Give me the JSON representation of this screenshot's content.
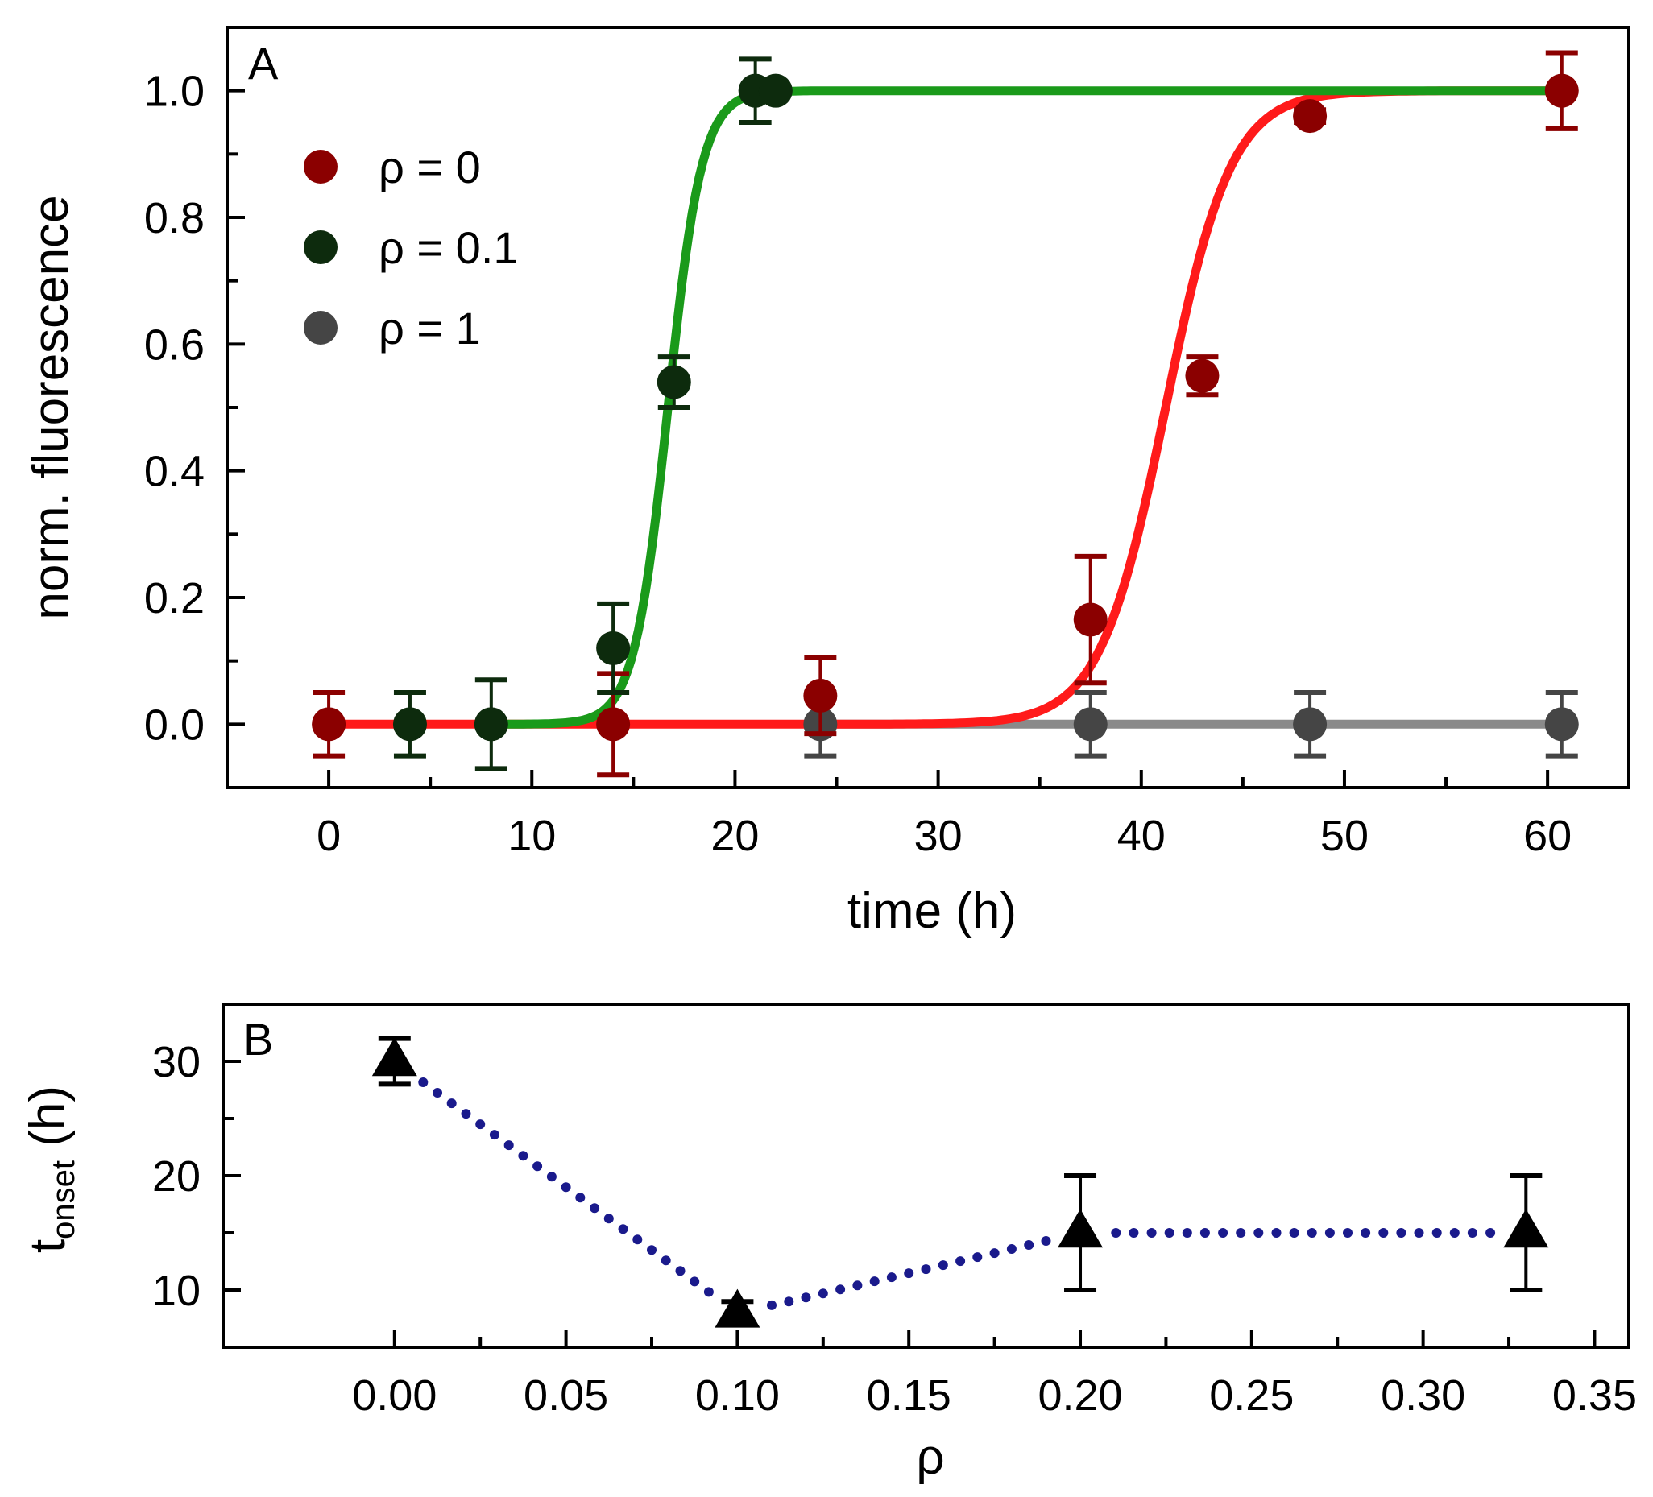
{
  "chart_data": [
    {
      "panel": "A",
      "type": "scatter",
      "xlabel": "time (h)",
      "ylabel": "norm. fluorescence",
      "xlim": [
        -5,
        64
      ],
      "ylim": [
        -0.1,
        1.1
      ],
      "xticks": [
        0,
        10,
        20,
        30,
        40,
        50,
        60
      ],
      "xtick_labels": [
        "0",
        "10",
        "20",
        "30",
        "40",
        "50",
        "60"
      ],
      "yticks": [
        0.0,
        0.2,
        0.4,
        0.6,
        0.8,
        1.0
      ],
      "ytick_labels": [
        "0.0",
        "0.2",
        "0.4",
        "0.6",
        "0.8",
        "1.0"
      ],
      "legend_position": "top-left",
      "series": [
        {
          "name": "ρ = 0",
          "marker_color": "#8b0000",
          "fit_color": "#ff1a1a",
          "fit": {
            "type": "sigmoid",
            "x0": 41.2,
            "k": 0.62,
            "x_range": [
              0,
              61
            ]
          },
          "points": [
            {
              "x": 0,
              "y": 0.0,
              "err": 0.05
            },
            {
              "x": 14,
              "y": 0.0,
              "err": 0.08
            },
            {
              "x": 24.2,
              "y": 0.045,
              "err": 0.06
            },
            {
              "x": 37.5,
              "y": 0.165,
              "err": 0.1
            },
            {
              "x": 43,
              "y": 0.55,
              "err": 0.03
            },
            {
              "x": 48.3,
              "y": 0.96,
              "err": 0.01
            },
            {
              "x": 60.7,
              "y": 1.0,
              "err": 0.06
            }
          ]
        },
        {
          "name": "ρ = 0.1",
          "marker_color": "#0d2b0d",
          "fit_color": "#1a9a1a",
          "fit": {
            "type": "sigmoid",
            "x0": 16.7,
            "k": 1.2,
            "x_range": [
              8,
              61
            ]
          },
          "points": [
            {
              "x": 4,
              "y": 0.0,
              "err": 0.05
            },
            {
              "x": 8,
              "y": 0.0,
              "err": 0.07
            },
            {
              "x": 14,
              "y": 0.12,
              "err": 0.07
            },
            {
              "x": 17,
              "y": 0.54,
              "err": 0.04
            },
            {
              "x": 21,
              "y": 1.0,
              "err": 0.05
            },
            {
              "x": 22,
              "y": 1.0,
              "err": 0.0
            }
          ]
        },
        {
          "name": "ρ = 1",
          "marker_color": "#454545",
          "fit_color": "#8a8a8a",
          "fit": {
            "type": "constant",
            "value": 0.0,
            "x_range": [
              24,
              61
            ]
          },
          "points": [
            {
              "x": 24.2,
              "y": 0.0,
              "err": 0.05
            },
            {
              "x": 37.5,
              "y": 0.0,
              "err": 0.05
            },
            {
              "x": 48.3,
              "y": 0.0,
              "err": 0.05
            },
            {
              "x": 60.7,
              "y": 0.0,
              "err": 0.05
            }
          ]
        }
      ]
    },
    {
      "panel": "B",
      "type": "scatter",
      "xlabel": "ρ",
      "ylabel_main": "t",
      "ylabel_sub": "onset",
      "ylabel_unit": " (h)",
      "xlim": [
        -0.05,
        0.36
      ],
      "ylim": [
        5,
        35
      ],
      "xticks": [
        0.0,
        0.05,
        0.1,
        0.15,
        0.2,
        0.25,
        0.3,
        0.35
      ],
      "xtick_labels": [
        "0.00",
        "0.05",
        "0.10",
        "0.15",
        "0.20",
        "0.25",
        "0.30",
        "0.35"
      ],
      "yticks": [
        10,
        20,
        30
      ],
      "ytick_labels": [
        "10",
        "20",
        "30"
      ],
      "marker_color": "#000000",
      "line_color": "#1a1a8c",
      "points": [
        {
          "x": 0.0,
          "y": 30,
          "err": 2
        },
        {
          "x": 0.1,
          "y": 8,
          "err": 1
        },
        {
          "x": 0.2,
          "y": 15,
          "err": 5
        },
        {
          "x": 0.33,
          "y": 15,
          "err": 5
        }
      ],
      "trend_line": [
        [
          0.0,
          30
        ],
        [
          0.1,
          8
        ],
        [
          0.115,
          9
        ],
        [
          0.2,
          15
        ],
        [
          0.33,
          15
        ]
      ]
    }
  ]
}
